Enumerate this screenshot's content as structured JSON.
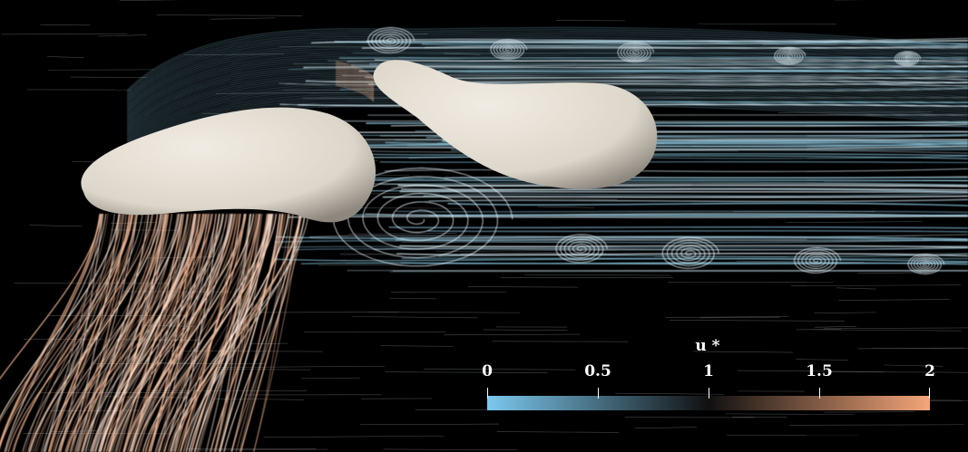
{
  "colorbar": {
    "title": "u *",
    "ticks": [
      {
        "label": "0",
        "value": 0
      },
      {
        "label": "0.5",
        "value": 0.5
      },
      {
        "label": "1",
        "value": 1
      },
      {
        "label": "1.5",
        "value": 1.5
      },
      {
        "label": "2",
        "value": 2
      }
    ],
    "range": [
      0,
      2
    ],
    "colors": {
      "low": "#7cc8ef",
      "mid": "#111111",
      "high": "#f4a57a"
    }
  },
  "colors": {
    "background": "#000000",
    "body": "#e9e3d8",
    "slow_streak": "#8fd0ea",
    "fast_streak": "#f2b591"
  }
}
